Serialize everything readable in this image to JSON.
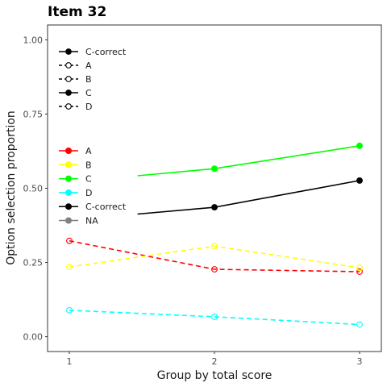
{
  "chart_data": {
    "type": "line",
    "title": "Item 32",
    "xlabel": "Group by total score",
    "ylabel": "Option selection proportion",
    "x": [
      1,
      2,
      3
    ],
    "x_tick_labels": [
      "1",
      "2",
      "3"
    ],
    "ylim": [
      0,
      1
    ],
    "y_ticks": [
      0,
      0.25,
      0.5,
      0.75,
      1
    ],
    "y_tick_labels": [
      "0.00",
      "0.25",
      "0.50",
      "0.75",
      "1.00"
    ],
    "grid": false,
    "series": [
      {
        "name": "A",
        "values": [
          0.323,
          0.227,
          0.219
        ],
        "color": "#ff0000",
        "linestyle": "dashed",
        "marker": "open-circle"
      },
      {
        "name": "B",
        "values": [
          0.235,
          0.305,
          0.232
        ],
        "color": "#ffff00",
        "linestyle": "dashed",
        "marker": "open-circle"
      },
      {
        "name": "C",
        "values": [
          null,
          0.566,
          0.643
        ],
        "line_start_x": 1.47,
        "line_start_y": 0.542,
        "color": "#00ff00",
        "linestyle": "solid",
        "marker": "filled-circle"
      },
      {
        "name": "D",
        "values": [
          0.089,
          0.067,
          0.041
        ],
        "color": "#00ffff",
        "linestyle": "dashed",
        "marker": "open-circle"
      },
      {
        "name": "C-correct",
        "values": [
          null,
          0.436,
          0.526
        ],
        "line_start_x": 1.47,
        "line_start_y": 0.413,
        "color": "#000000",
        "linestyle": "solid",
        "marker": "filled-circle"
      }
    ],
    "legend_linetype": {
      "placement": "top-left",
      "entries": [
        {
          "label": "C-correct",
          "linestyle": "solid",
          "marker": "filled-circle"
        },
        {
          "label": "A",
          "linestyle": "dashed",
          "marker": "open-circle"
        },
        {
          "label": "B",
          "linestyle": "dashed",
          "marker": "open-circle"
        },
        {
          "label": "C",
          "linestyle": "solid",
          "marker": "filled-circle"
        },
        {
          "label": "D",
          "linestyle": "dashed",
          "marker": "open-circle"
        }
      ]
    },
    "legend_color": {
      "placement": "left",
      "entries": [
        {
          "label": "A",
          "color": "#ff0000"
        },
        {
          "label": "B",
          "color": "#ffff00"
        },
        {
          "label": "C",
          "color": "#00ff00"
        },
        {
          "label": "D",
          "color": "#00ffff"
        },
        {
          "label": "C-correct",
          "color": "#000000"
        },
        {
          "label": "NA",
          "color": "#808080"
        }
      ]
    }
  }
}
